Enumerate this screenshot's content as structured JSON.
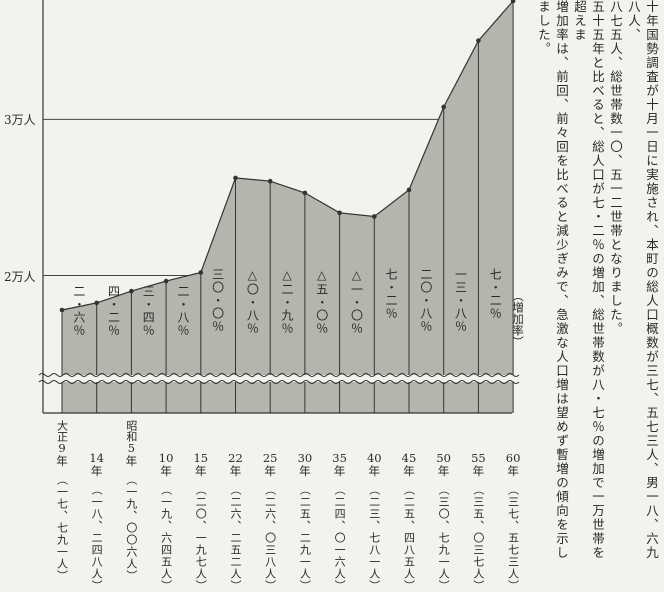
{
  "chart_data": {
    "type": "area",
    "ylabels": [
      "3万人",
      "2万人"
    ],
    "y_ticks": [
      30000,
      20000
    ],
    "ylim": [
      11200,
      37000
    ],
    "categories": [
      "9",
      "14",
      "5",
      "10",
      "15",
      "22",
      "25",
      "30",
      "35",
      "40",
      "45",
      "50",
      "55",
      "60"
    ],
    "category_eras": [
      "大正",
      "",
      "昭和",
      "",
      "",
      "",
      "",
      "",
      "",
      "",
      "",
      "",
      "",
      ""
    ],
    "year_suffix": "年",
    "population_labels": [
      "（一七、七九一人）",
      "（一八、二四八人）",
      "（一九、〇〇六人）",
      "（一九、六四五人）",
      "（二〇、一九七人）",
      "（二六、二五二人）",
      "（二六、〇三八人）",
      "（二五、二九一人）",
      "（二四、〇一六人）",
      "（二三、七八一人）",
      "（二五、四八五人）",
      "（三〇、七九一人）",
      "（三五、〇三七人）",
      "（三七、五七三人）"
    ],
    "values": [
      17791,
      18248,
      19006,
      19645,
      20197,
      26252,
      26038,
      25291,
      24016,
      23781,
      25485,
      30791,
      35037,
      37573
    ],
    "growth_rates": [
      "二・六％",
      "四・二％",
      "三・四％",
      "二・八％",
      "三〇・〇％",
      "△〇・八％",
      "△二・九％",
      "△五・〇％",
      "△一・〇％",
      "七・二％",
      "二〇・八％",
      "一三・八％",
      "七・二％"
    ],
    "growth_rate_label": "（増加率）",
    "colors": {
      "fill": "#b4b6ae",
      "line": "#333333",
      "grid": "#444444"
    }
  },
  "text_column": [
    "十年国勢調査が十月一日に実施され、本町の総人口概数が三七、五七三人、男一八、六九八人、",
    "八七五人、総世帯数一〇、五一二世帯となりました。",
    "五十五年と比べると、総人口が七・二％の増加、総世帯数が八・七％の増加で一万世帯を超えま",
    "増加率は、前回、前々回を比べると減少ぎみで、急激な人口増は望めず暫増の傾向を示しました。"
  ]
}
